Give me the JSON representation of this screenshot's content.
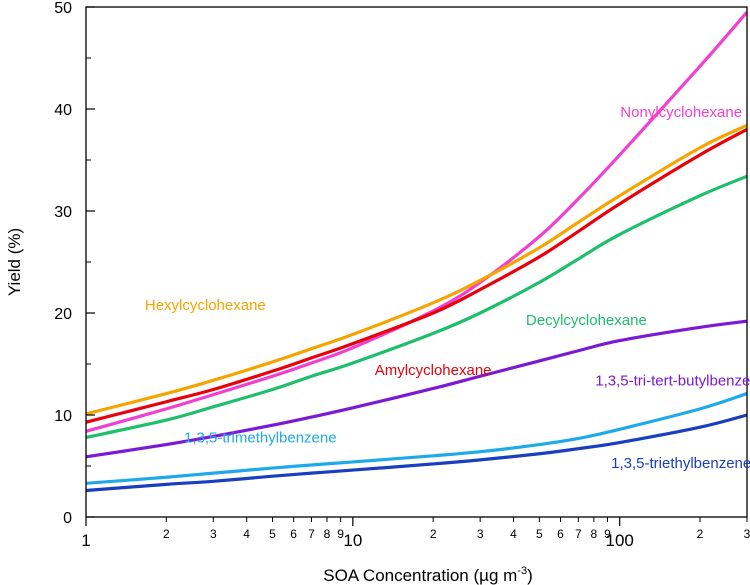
{
  "chart_data": {
    "type": "line",
    "title": "",
    "xlabel": "SOA Concentration (µg m",
    "xlabel_sup": "-3",
    "xlabel_end": ")",
    "ylabel": "Yield (%)",
    "xscale": "log",
    "xlim": [
      1,
      300
    ],
    "ylim": [
      0,
      50
    ],
    "grid": false,
    "yticks": [
      0,
      10,
      20,
      30,
      40,
      50
    ],
    "ytick_labels": [
      "0",
      "10",
      "20",
      "30",
      "40",
      "50"
    ],
    "xticks_major": [
      1,
      10,
      100
    ],
    "xtick_major_labels": [
      "1",
      "10",
      "100"
    ],
    "xticks_minor": [
      2,
      3,
      4,
      5,
      6,
      7,
      8,
      9,
      20,
      30,
      40,
      50,
      60,
      70,
      80,
      90,
      200,
      300
    ],
    "xtick_minor_labels": [
      "2",
      "3",
      "4",
      "5",
      "6",
      "7",
      "8",
      "9",
      "2",
      "3",
      "4",
      "5",
      "6",
      "7",
      "8",
      "9",
      "2",
      "3"
    ],
    "x": [
      1,
      2,
      3,
      5,
      7,
      10,
      20,
      30,
      50,
      70,
      100,
      200,
      300
    ],
    "series": [
      {
        "name": "Nonylcyclohexane",
        "color": "#F040D0",
        "values": [
          8.4,
          10.6,
          12.0,
          13.8,
          15.1,
          16.6,
          20.2,
          23.0,
          27.5,
          31.2,
          35.5,
          44.2,
          49.5
        ],
        "label_x": 170,
        "label_y": 39.2
      },
      {
        "name": "Hexylcyclohexane",
        "color": "#F5A500",
        "values": [
          10.1,
          12.1,
          13.4,
          15.2,
          16.5,
          17.9,
          21.0,
          23.2,
          26.4,
          28.9,
          31.5,
          36.2,
          38.4
        ],
        "label_x": 2.8,
        "label_y": 20.3
      },
      {
        "name": "Amylcyclohexane",
        "color": "#E8000B",
        "values": [
          9.3,
          11.3,
          12.5,
          14.3,
          15.6,
          17.0,
          20.0,
          22.3,
          25.5,
          28.0,
          30.7,
          35.5,
          38.0
        ],
        "label_x": 20,
        "label_y": 13.9
      },
      {
        "name": "Decylcyclohexane",
        "color": "#1DBF6A",
        "values": [
          7.8,
          9.5,
          10.8,
          12.5,
          13.8,
          15.1,
          18.0,
          20.0,
          23.0,
          25.3,
          27.7,
          31.5,
          33.4
        ],
        "label_x": 75,
        "label_y": 18.8
      },
      {
        "name": "1,3,5-tri-tert-butylbenzene",
        "color": "#7A19D6",
        "values": [
          5.9,
          7.1,
          7.9,
          9.0,
          9.8,
          10.7,
          12.6,
          13.8,
          15.3,
          16.3,
          17.3,
          18.6,
          19.2
        ],
        "label_x": 170,
        "label_y": 12.9
      },
      {
        "name": "1,3,5-trimethylbenzene",
        "color": "#1EAAEA",
        "values": [
          3.3,
          3.9,
          4.3,
          4.8,
          5.1,
          5.4,
          6.0,
          6.4,
          7.1,
          7.7,
          8.6,
          10.6,
          12.1
        ],
        "label_x": 4.5,
        "label_y": 7.3
      },
      {
        "name": "1,3,5-triethylbenzene",
        "color": "#1A3EC0",
        "values": [
          2.6,
          3.2,
          3.5,
          4.0,
          4.3,
          4.6,
          5.2,
          5.6,
          6.2,
          6.7,
          7.3,
          8.8,
          10.0
        ],
        "label_x": 170,
        "label_y": 4.8
      }
    ]
  }
}
